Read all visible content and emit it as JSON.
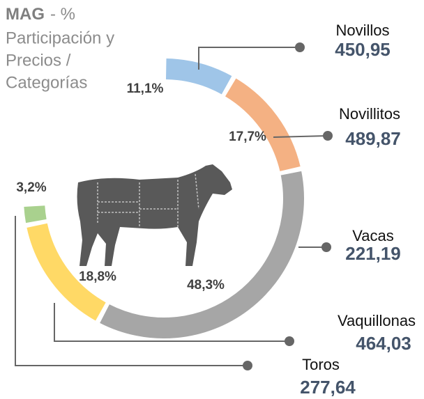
{
  "chart_data": {
    "type": "donut",
    "title_bold": "MAG",
    "title_lines": [
      "- %",
      "Participación  y",
      "Precios /",
      "Categorías"
    ],
    "categories": [
      "Novillos",
      "Novillitos",
      "Vacas",
      "Vaquillonas",
      "Toros"
    ],
    "values": [
      11.1,
      17.7,
      48.3,
      18.8,
      3.2
    ],
    "value_labels": [
      "11,1%",
      "17,7%",
      "48,3%",
      "18,8%",
      "3,2%"
    ],
    "prices": [
      "450,95",
      "489,87",
      "221,19",
      "464,03",
      "277,64"
    ],
    "colors": [
      "#9fc5e8",
      "#f4b183",
      "#a6a6a6",
      "#ffd966",
      "#a9d18e"
    ]
  }
}
